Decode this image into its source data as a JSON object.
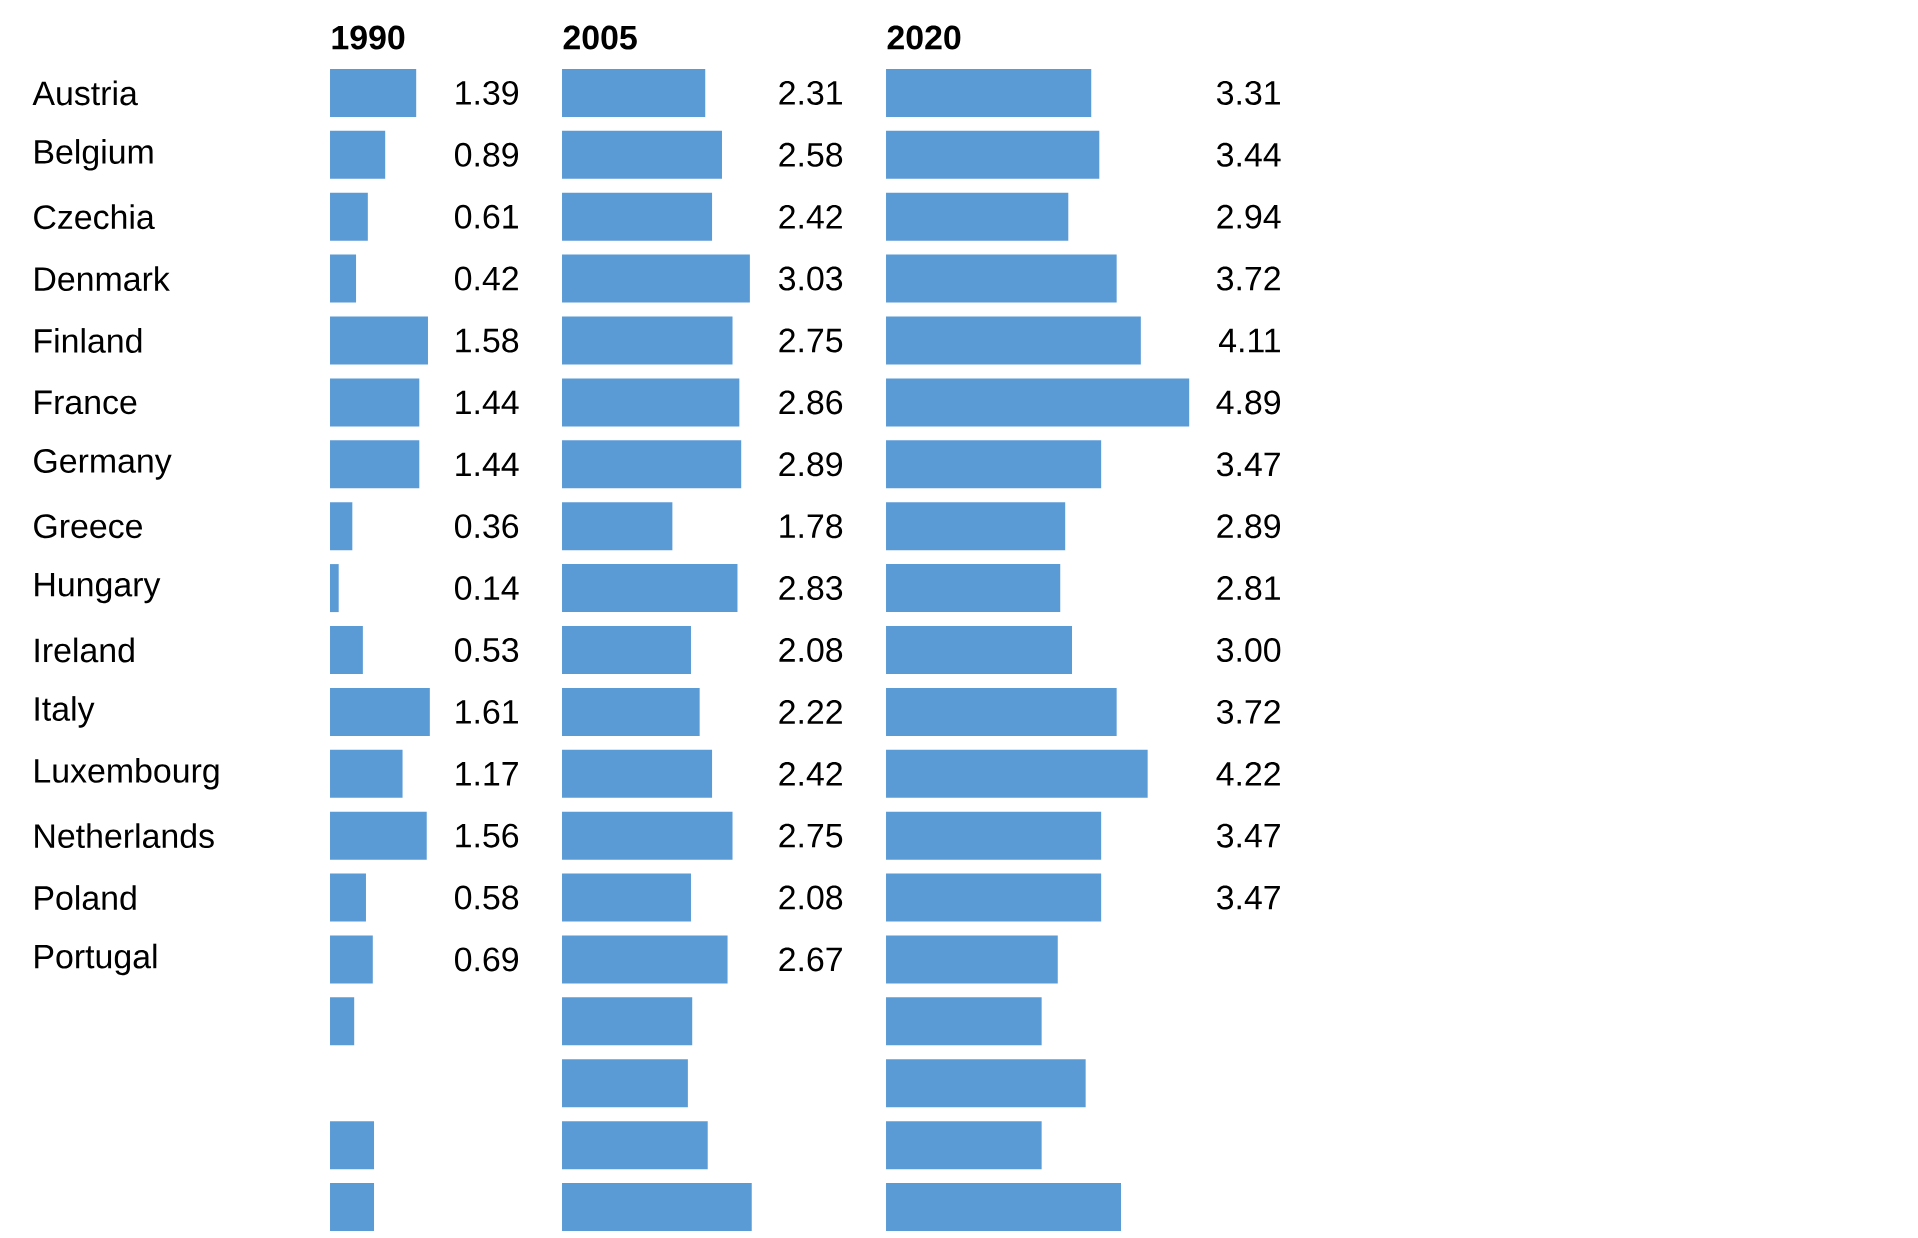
{
  "chart_data": [
    {
      "type": "bar",
      "orientation": "horizontal",
      "title": "1990",
      "tick_labels": "y",
      "color": "#5b9bd5",
      "categories": [
        "Austria",
        "Belgium",
        "Czechia",
        "Denmark",
        "Finland",
        "France",
        "Germany",
        "Greece",
        "Hungary",
        "Ireland",
        "Italy",
        "Luxembourg",
        "Netherlands",
        "Poland",
        "Portugal",
        null,
        null,
        null,
        null
      ],
      "values": [
        1.39,
        0.89,
        0.61,
        0.42,
        1.58,
        1.44,
        1.44,
        0.36,
        0.14,
        0.53,
        1.61,
        1.17,
        1.56,
        0.58,
        0.69,
        0.39,
        0,
        0.71,
        0.71
      ],
      "value_labels": [
        "1.39",
        "0.89",
        "0.61",
        "0.42",
        "1.58",
        "1.44",
        "1.44",
        "0.36",
        "0.14",
        "0.53",
        "1.61",
        "1.17",
        "1.56",
        "0.58",
        "0.69",
        null,
        null,
        null,
        null
      ]
    },
    {
      "type": "bar",
      "orientation": "horizontal",
      "title": "2005",
      "tick_labels": false,
      "color": "#5b9bd5",
      "categories": [
        null,
        null,
        null,
        null,
        null,
        null,
        null,
        null,
        null,
        null,
        null,
        null,
        null,
        null,
        null,
        null,
        null,
        null,
        null
      ],
      "values": [
        2.31,
        2.58,
        2.42,
        3.03,
        2.75,
        2.86,
        2.89,
        1.78,
        2.83,
        2.08,
        2.22,
        2.42,
        2.75,
        2.08,
        2.67,
        2.1,
        2.03,
        2.35,
        3.06
      ],
      "value_labels": [
        "2.31",
        "2.58",
        "2.42",
        "3.03",
        "2.75",
        "2.86",
        "2.89",
        "1.78",
        "2.83",
        "2.08",
        "2.22",
        "2.42",
        "2.75",
        "2.08",
        "2.67",
        null,
        null,
        null,
        null
      ]
    },
    {
      "type": "bar",
      "orientation": "horizontal",
      "title": "2020",
      "tick_labels": false,
      "color": "#5b9bd5",
      "categories": [
        null,
        null,
        null,
        null,
        null,
        null,
        null,
        null,
        null,
        null,
        null,
        null,
        null,
        null,
        null,
        null,
        null,
        null,
        null
      ],
      "values": [
        3.31,
        3.44,
        2.94,
        3.72,
        4.11,
        4.89,
        3.47,
        2.89,
        2.81,
        3.0,
        3.72,
        4.22,
        3.47,
        3.47,
        2.77,
        2.51,
        3.22,
        2.51,
        3.79
      ],
      "value_labels": [
        "3.31",
        "3.44",
        "2.94",
        "3.72",
        "4.11",
        "4.89",
        "3.47",
        "2.89",
        "2.81",
        "3.00",
        "3.72",
        "4.22",
        "3.47",
        "3.47",
        null,
        null,
        null,
        null,
        null
      ]
    }
  ]
}
